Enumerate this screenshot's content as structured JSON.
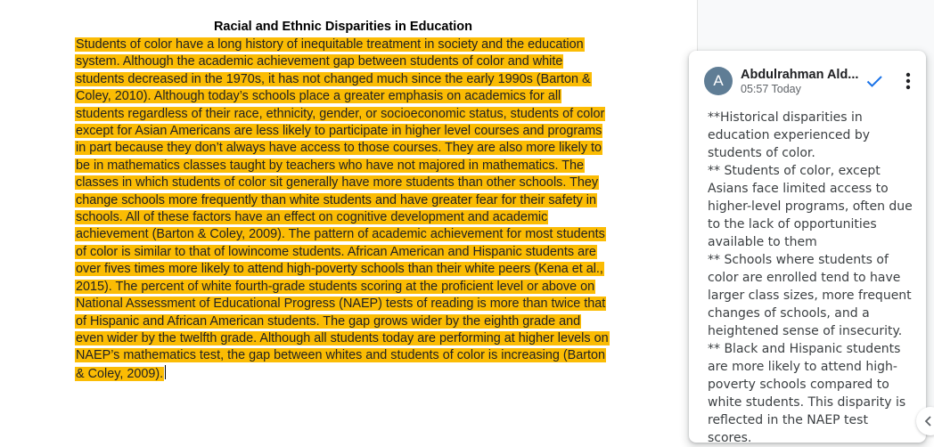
{
  "document": {
    "title": "Racial and Ethnic Disparities in Education",
    "body": "Students of color have a long history of inequitable treatment in society and the education system. Although the academic achievement gap between students of color and white students decreased in the 1970s, it has not changed much since the early 1990s (Barton & Coley, 2010). Although today’s schools place a greater emphasis on academics for all students regardless of their race, ethnicity, gender, or socioeconomic status, students of color except for Asian Americans are less likely to participate in higher level courses and programs in part because they don’t always have access to those courses. They are also more likely to be in mathematics classes taught by teachers who have not majored in mathematics. The classes in which students of color sit generally have more students than other schools. They change schools more frequently than white students and have greater fear for their safety in schools. All of these factors have an effect on cognitive development and academic achievement (Barton & Coley, 2009). The pattern of academic achievement for most students of color is similar to that of lowincome students. African American and Hispanic students are over fives times more likely to attend high-poverty schools than their white peers (Kena et al., 2015). The percent of white fourth-grade students scoring at the proficient level or above on National Assessment of Educational Progress (NAEP) tests of reading is more than twice that of Hispanic and African American students. The gap grows wider by the eighth grade and even wider by the twelfth grade. Although all students today are performing at higher levels on NAEP’s mathematics test, the gap between whites and students of color is increasing (Barton & Coley, 2009).",
    "highlight_color": "#fbbc04"
  },
  "comment": {
    "avatar_initial": "A",
    "author": "Abdulrahman Ald...",
    "time": "05:57 Today",
    "lines": [
      "**Historical disparities in education experienced by students of color.",
      "** Students of color, except Asians face limited access to higher-level programs, often due to the lack of opportunities available to them",
      "** Schools where students of color are enrolled tend to have larger class sizes, more frequent changes of schools, and a heightened sense of insecurity.",
      "** Black and Hispanic students are more likely to attend high-poverty schools compared to white students. This disparity is reflected in the NAEP test scores."
    ],
    "avatar_color": "#5f7d95",
    "accent_color": "#1a73e8"
  },
  "icons": {
    "resolve": "check-icon",
    "more": "more-vert-icon",
    "collapse": "chevron-left-icon"
  }
}
